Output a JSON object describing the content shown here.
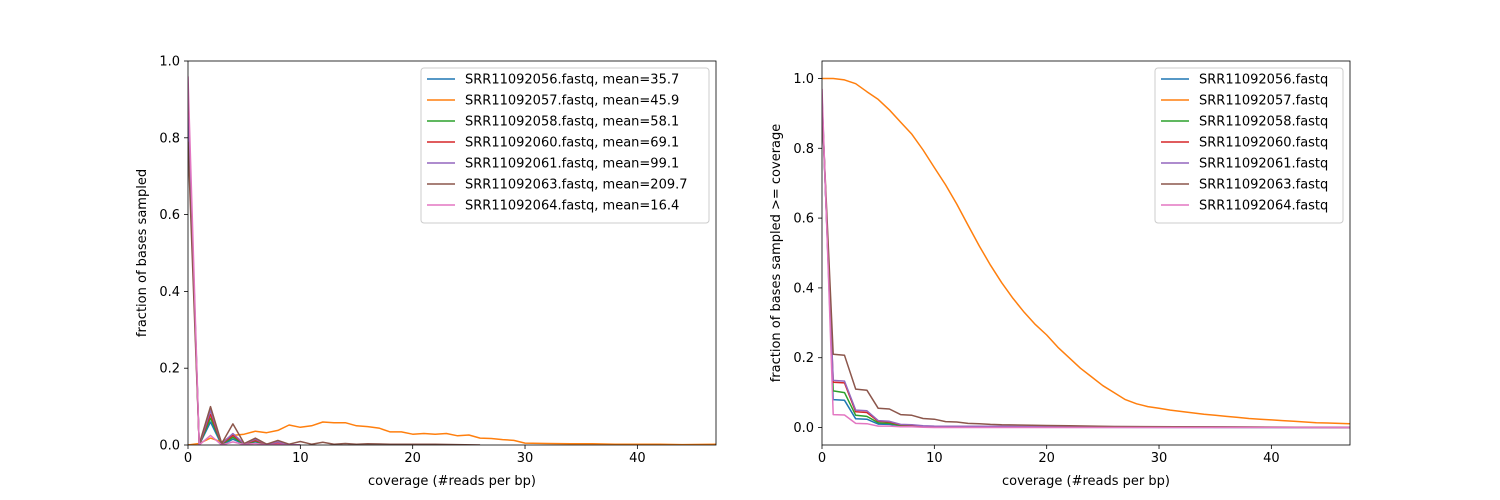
{
  "figure": {
    "background": "#ffffff"
  },
  "chart_data": [
    {
      "type": "line",
      "xlabel": "coverage (#reads per bp)",
      "ylabel": "fraction of bases sampled",
      "xlim": [
        0,
        47
      ],
      "ylim": [
        0,
        1.0
      ],
      "xticks": [
        "0",
        "10",
        "20",
        "30",
        "40"
      ],
      "yticks": [
        "0.0",
        "0.2",
        "0.4",
        "0.6",
        "0.8",
        "1.0"
      ],
      "legend_position": "top-right",
      "series": [
        {
          "name": "SRR11092056.fastq, mean=35.7",
          "color": "#1f77b4",
          "x": [
            0,
            1,
            2,
            3,
            4,
            5,
            6,
            7,
            8,
            9,
            10
          ],
          "y": [
            0.9,
            0.0,
            0.06,
            0.0,
            0.015,
            0.002,
            0.008,
            0.001,
            0.004,
            0.001,
            0.0
          ]
        },
        {
          "name": "SRR11092057.fastq, mean=45.9",
          "color": "#ff7f0e",
          "x": [
            0,
            1,
            2,
            3,
            4,
            5,
            6,
            7,
            8,
            9,
            10,
            11,
            12,
            13,
            14,
            15,
            16,
            17,
            18,
            19,
            20,
            21,
            22,
            23,
            24,
            25,
            26,
            27,
            28,
            29,
            30,
            32,
            34,
            36,
            38,
            40,
            42,
            44,
            47
          ],
          "y": [
            0.0,
            0.004,
            0.018,
            0.008,
            0.025,
            0.028,
            0.036,
            0.032,
            0.038,
            0.052,
            0.046,
            0.05,
            0.06,
            0.058,
            0.058,
            0.05,
            0.048,
            0.044,
            0.034,
            0.034,
            0.028,
            0.03,
            0.028,
            0.03,
            0.024,
            0.026,
            0.018,
            0.017,
            0.014,
            0.012,
            0.005,
            0.004,
            0.003,
            0.003,
            0.002,
            0.002,
            0.002,
            0.001,
            0.002
          ]
        },
        {
          "name": "SRR11092058.fastq, mean=58.1",
          "color": "#2ca02c",
          "x": [
            0,
            1,
            2,
            3,
            4,
            5,
            6,
            7,
            8,
            9,
            10
          ],
          "y": [
            0.89,
            0.0,
            0.07,
            0.002,
            0.02,
            0.002,
            0.01,
            0.001,
            0.005,
            0.001,
            0.0
          ]
        },
        {
          "name": "SRR11092060.fastq, mean=69.1",
          "color": "#d62728",
          "x": [
            0,
            1,
            2,
            3,
            4,
            5,
            6,
            7,
            8,
            9,
            10
          ],
          "y": [
            0.87,
            0.0,
            0.08,
            0.003,
            0.025,
            0.003,
            0.012,
            0.002,
            0.006,
            0.001,
            0.0
          ]
        },
        {
          "name": "SRR11092061.fastq, mean=99.1",
          "color": "#9467bd",
          "x": [
            0,
            1,
            2,
            3,
            4,
            5,
            6,
            7,
            8,
            9,
            10
          ],
          "y": [
            0.86,
            0.0,
            0.09,
            0.004,
            0.03,
            0.003,
            0.015,
            0.002,
            0.008,
            0.001,
            0.0
          ]
        },
        {
          "name": "SRR11092063.fastq, mean=209.7",
          "color": "#8c564b",
          "x": [
            0,
            1,
            2,
            3,
            4,
            5,
            6,
            7,
            8,
            9,
            10,
            11,
            12,
            13,
            14,
            15,
            16,
            18,
            20,
            22,
            24,
            26
          ],
          "y": [
            0.79,
            0.002,
            0.1,
            0.004,
            0.055,
            0.004,
            0.018,
            0.002,
            0.012,
            0.002,
            0.009,
            0.002,
            0.007,
            0.002,
            0.004,
            0.002,
            0.003,
            0.002,
            0.002,
            0.002,
            0.001,
            0.0
          ]
        },
        {
          "name": "SRR11092064.fastq, mean=16.4",
          "color": "#e377c2",
          "x": [
            0,
            1,
            2,
            3,
            4,
            5,
            6,
            7,
            8,
            9,
            10
          ],
          "y": [
            0.96,
            0.0,
            0.025,
            0.0,
            0.008,
            0.001,
            0.004,
            0.0,
            0.002,
            0.0,
            0.0
          ]
        }
      ]
    },
    {
      "type": "line",
      "xlabel": "coverage (#reads per bp)",
      "ylabel": "fraction of bases sampled >= coverage",
      "xlim": [
        0,
        47
      ],
      "ylim": [
        -0.05,
        1.05
      ],
      "xticks": [
        "0",
        "10",
        "20",
        "30",
        "40"
      ],
      "yticks": [
        "0.0",
        "0.2",
        "0.4",
        "0.6",
        "0.8",
        "1.0"
      ],
      "legend_position": "top-right",
      "series": [
        {
          "name": "SRR11092056.fastq",
          "color": "#1f77b4",
          "x": [
            0,
            1,
            2,
            3,
            4,
            5,
            6,
            7,
            8,
            9,
            10,
            47
          ],
          "y": [
            0.95,
            0.08,
            0.078,
            0.025,
            0.024,
            0.01,
            0.009,
            0.005,
            0.004,
            0.002,
            0.001,
            0.0
          ]
        },
        {
          "name": "SRR11092057.fastq",
          "color": "#ff7f0e",
          "x": [
            0,
            1,
            2,
            3,
            4,
            5,
            6,
            7,
            8,
            9,
            10,
            11,
            12,
            13,
            14,
            15,
            16,
            17,
            18,
            19,
            20,
            21,
            22,
            23,
            24,
            25,
            26,
            27,
            28,
            29,
            30,
            31,
            32,
            33,
            34,
            35,
            36,
            37,
            38,
            39,
            40,
            41,
            42,
            43,
            44,
            45,
            46,
            47
          ],
          "y": [
            1.0,
            1.0,
            0.996,
            0.985,
            0.962,
            0.94,
            0.91,
            0.875,
            0.84,
            0.795,
            0.745,
            0.695,
            0.64,
            0.58,
            0.52,
            0.465,
            0.415,
            0.37,
            0.33,
            0.295,
            0.265,
            0.23,
            0.2,
            0.17,
            0.145,
            0.12,
            0.1,
            0.08,
            0.068,
            0.06,
            0.055,
            0.05,
            0.046,
            0.042,
            0.038,
            0.035,
            0.032,
            0.029,
            0.026,
            0.024,
            0.022,
            0.02,
            0.018,
            0.016,
            0.014,
            0.013,
            0.012,
            0.011
          ]
        },
        {
          "name": "SRR11092058.fastq",
          "color": "#2ca02c",
          "x": [
            0,
            1,
            2,
            3,
            4,
            5,
            6,
            7,
            8,
            9,
            10,
            47
          ],
          "y": [
            0.94,
            0.105,
            0.1,
            0.035,
            0.032,
            0.014,
            0.012,
            0.006,
            0.005,
            0.003,
            0.002,
            0.0
          ]
        },
        {
          "name": "SRR11092060.fastq",
          "color": "#d62728",
          "x": [
            0,
            1,
            2,
            3,
            4,
            5,
            6,
            7,
            8,
            9,
            10,
            47
          ],
          "y": [
            0.93,
            0.13,
            0.128,
            0.045,
            0.043,
            0.018,
            0.016,
            0.008,
            0.007,
            0.004,
            0.003,
            0.0
          ]
        },
        {
          "name": "SRR11092061.fastq",
          "color": "#9467bd",
          "x": [
            0,
            1,
            2,
            3,
            4,
            5,
            6,
            7,
            8,
            9,
            10,
            47
          ],
          "y": [
            0.92,
            0.135,
            0.133,
            0.05,
            0.048,
            0.02,
            0.018,
            0.009,
            0.008,
            0.005,
            0.004,
            0.0
          ]
        },
        {
          "name": "SRR11092063.fastq",
          "color": "#8c564b",
          "x": [
            0,
            1,
            2,
            3,
            4,
            5,
            6,
            7,
            8,
            9,
            10,
            11,
            12,
            13,
            14,
            15,
            16,
            18,
            20,
            22,
            24,
            26,
            47
          ],
          "y": [
            0.92,
            0.21,
            0.207,
            0.11,
            0.107,
            0.055,
            0.053,
            0.037,
            0.035,
            0.026,
            0.024,
            0.017,
            0.016,
            0.012,
            0.011,
            0.009,
            0.008,
            0.007,
            0.006,
            0.005,
            0.004,
            0.003,
            0.0
          ]
        },
        {
          "name": "SRR11092064.fastq",
          "color": "#e377c2",
          "x": [
            0,
            1,
            2,
            3,
            4,
            5,
            6,
            7,
            8,
            9,
            10,
            47
          ],
          "y": [
            0.97,
            0.037,
            0.036,
            0.012,
            0.011,
            0.004,
            0.004,
            0.002,
            0.002,
            0.001,
            0.0,
            0.0
          ]
        }
      ]
    }
  ]
}
